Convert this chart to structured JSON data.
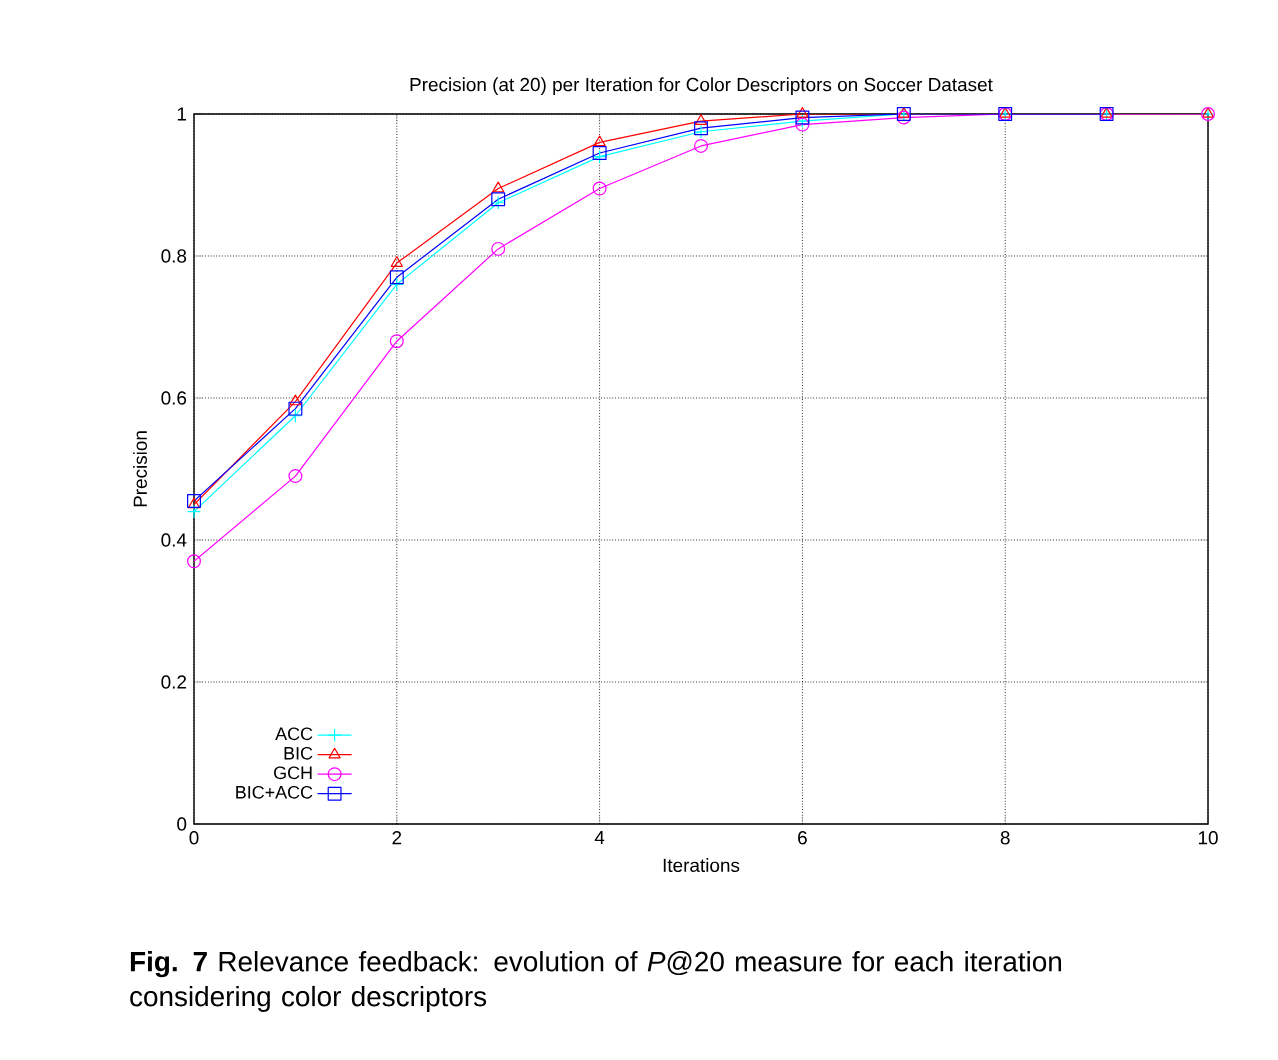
{
  "chart_data": {
    "type": "line",
    "title": "Precision (at 20) per Iteration for Color Descriptors on Soccer Dataset",
    "xlabel": "Iterations",
    "ylabel": "Precision",
    "annotations": [
      "**Fig. 7** Relevance feedback: evolution of *P*@20 measure for each iteration considering color descriptors"
    ],
    "x": [
      0,
      1,
      2,
      3,
      4,
      5,
      6,
      7,
      8,
      9,
      10
    ],
    "series": [
      {
        "name": "ACC",
        "color": "#00ffff",
        "marker": "cross",
        "values": [
          0.44,
          0.575,
          0.76,
          0.875,
          0.94,
          0.975,
          0.99,
          1,
          1,
          1,
          1
        ]
      },
      {
        "name": "BIC",
        "color": "#ff0000",
        "marker": "triangle",
        "values": [
          0.45,
          0.595,
          0.79,
          0.895,
          0.96,
          0.99,
          1,
          1,
          1,
          1,
          1
        ]
      },
      {
        "name": "GCH",
        "color": "#ff00ff",
        "marker": "circle",
        "values": [
          0.37,
          0.49,
          0.68,
          0.81,
          0.895,
          0.955,
          0.985,
          0.995,
          1,
          1,
          1
        ]
      },
      {
        "name": "BIC+ACC",
        "color": "#0000ff",
        "marker": "square",
        "values": [
          0.455,
          0.585,
          0.77,
          0.88,
          0.945,
          0.98,
          0.995,
          1,
          1,
          1,
          null
        ]
      }
    ],
    "xlim": [
      0,
      10
    ],
    "xticks": [
      0,
      2,
      4,
      6,
      8,
      10
    ],
    "ylim": [
      0,
      1
    ],
    "yticks": [
      0,
      0.2,
      0.4,
      0.6,
      0.8,
      1
    ],
    "grid": true,
    "legend": "bottom left",
    "line_style": "solid"
  }
}
